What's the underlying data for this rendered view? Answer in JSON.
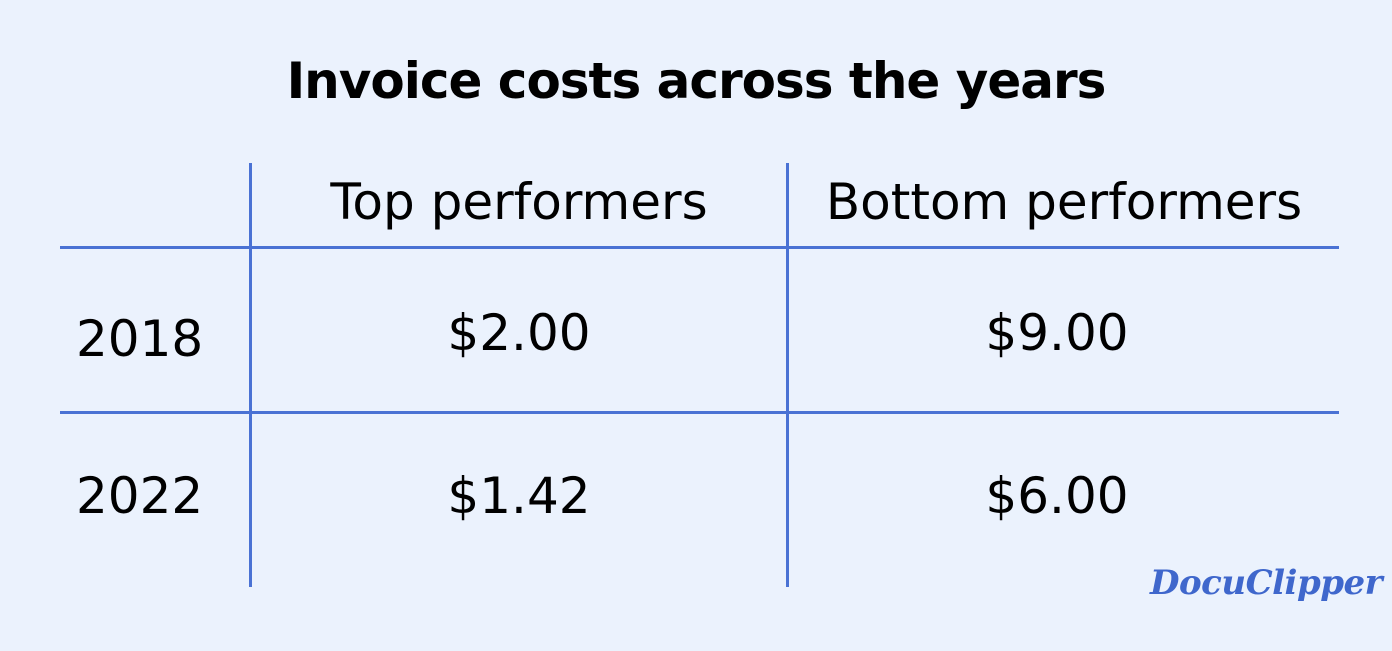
{
  "title": "Invoice costs across the years",
  "chart_data": {
    "type": "table",
    "title": "Invoice costs across the years",
    "columns": [
      "Top performers",
      "Bottom performers"
    ],
    "rows": [
      {
        "label": "2018",
        "values": [
          "$2.00",
          "$9.00"
        ]
      },
      {
        "label": "2022",
        "values": [
          "$1.42",
          "$6.00"
        ]
      }
    ]
  },
  "brand": {
    "logo_text": "DocuClipper",
    "color": "#3f67cc"
  },
  "colors": {
    "background": "#ebf2fd",
    "grid": "#4a72d4"
  }
}
